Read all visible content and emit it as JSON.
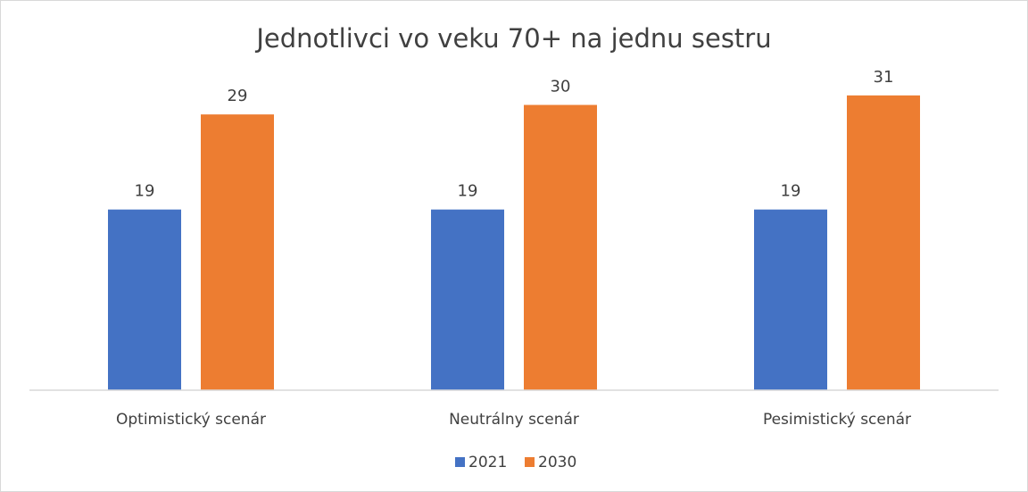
{
  "chart_data": {
    "type": "bar",
    "title": "Jednotlivci vo veku 70+ na jednu sestru",
    "categories": [
      "Optimistický scenár",
      "Neutrálny scenár",
      "Pesimistický scenár"
    ],
    "series": [
      {
        "name": "2021",
        "values": [
          19,
          19,
          19
        ],
        "color": "#4472c4"
      },
      {
        "name": "2030",
        "values": [
          29,
          30,
          31
        ],
        "color": "#ed7d31"
      }
    ],
    "ylim": [
      0,
      40
    ],
    "grid": false,
    "legend_position": "bottom",
    "data_labels": true
  }
}
